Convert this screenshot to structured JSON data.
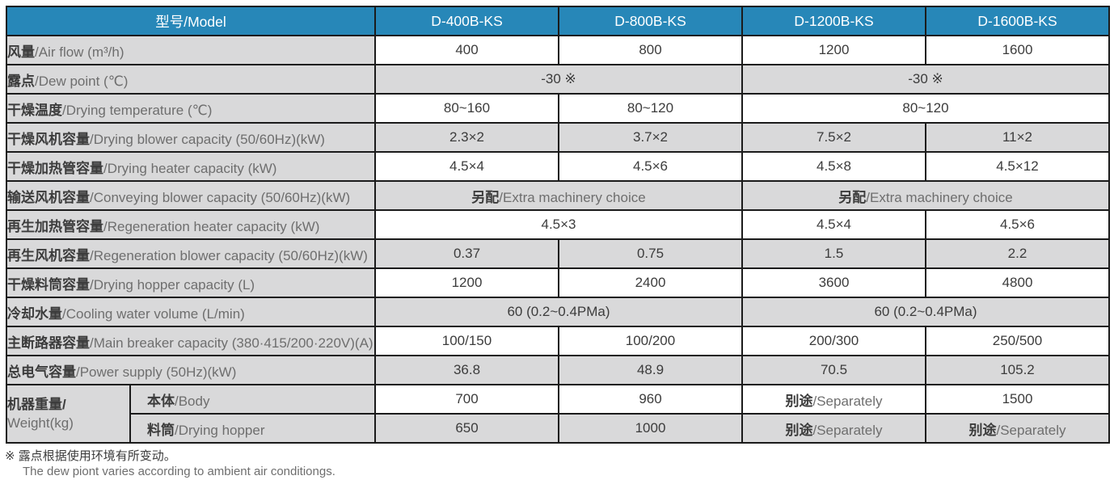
{
  "table": {
    "header": {
      "label": {
        "zh": "型号",
        "en": "/Model"
      },
      "models": [
        "D-400B-KS",
        "D-800B-KS",
        "D-1200B-KS",
        "D-1600B-KS"
      ]
    },
    "rows": [
      {
        "label": {
          "zh": "风量",
          "en": "/Air flow (m³/h)"
        },
        "shade": false,
        "cells": [
          {
            "text": "400"
          },
          {
            "text": "800"
          },
          {
            "text": "1200"
          },
          {
            "text": "1600"
          }
        ]
      },
      {
        "label": {
          "zh": "露点",
          "en": "/Dew point (℃)"
        },
        "shade": true,
        "cells": [
          {
            "text": "-30 ※",
            "span": 2
          },
          {
            "text": "-30 ※",
            "span": 2
          }
        ]
      },
      {
        "label": {
          "zh": "干燥温度",
          "en": "/Drying temperature (℃)"
        },
        "shade": false,
        "cells": [
          {
            "text": "80~160"
          },
          {
            "text": "80~120"
          },
          {
            "text": "80~120",
            "span": 2
          }
        ]
      },
      {
        "label": {
          "zh": "干燥风机容量",
          "en": "/Drying blower capacity (50/60Hz)(kW)"
        },
        "shade": true,
        "cells": [
          {
            "text": "2.3×2"
          },
          {
            "text": "3.7×2"
          },
          {
            "text": "7.5×2"
          },
          {
            "text": "11×2"
          }
        ]
      },
      {
        "label": {
          "zh": "干燥加热管容量",
          "en": "/Drying heater capacity (kW)"
        },
        "shade": false,
        "cells": [
          {
            "text": "4.5×4"
          },
          {
            "text": "4.5×6"
          },
          {
            "text": "4.5×8"
          },
          {
            "text": "4.5×12"
          }
        ]
      },
      {
        "label": {
          "zh": "输送风机容量",
          "en": "/Conveying blower capacity (50/60Hz)(kW)"
        },
        "shade": true,
        "cells": [
          {
            "zh": "另配",
            "en": "/Extra machinery choice",
            "span": 2
          },
          {
            "zh": "另配",
            "en": "/Extra machinery choice",
            "span": 2
          }
        ]
      },
      {
        "label": {
          "zh": "再生加热管容量",
          "en": "/Regeneration heater capacity (kW)"
        },
        "shade": false,
        "cells": [
          {
            "text": "4.5×3",
            "span": 2
          },
          {
            "text": "4.5×4"
          },
          {
            "text": "4.5×6"
          }
        ]
      },
      {
        "label": {
          "zh": "再生风机容量",
          "en": "/Regeneration blower capacity (50/60Hz)(kW)"
        },
        "shade": true,
        "cells": [
          {
            "text": "0.37"
          },
          {
            "text": "0.75"
          },
          {
            "text": "1.5"
          },
          {
            "text": "2.2"
          }
        ]
      },
      {
        "label": {
          "zh": "干燥料筒容量",
          "en": "/Drying hopper capacity (L)"
        },
        "shade": false,
        "cells": [
          {
            "text": "1200"
          },
          {
            "text": "2400"
          },
          {
            "text": "3600"
          },
          {
            "text": "4800"
          }
        ]
      },
      {
        "label": {
          "zh": "冷却水量",
          "en": "/Cooling water volume (L/min)"
        },
        "shade": true,
        "cells": [
          {
            "text": "60 (0.2~0.4PMa)",
            "span": 2
          },
          {
            "text": "60 (0.2~0.4PMa)",
            "span": 2
          }
        ]
      },
      {
        "label": {
          "zh": "主断路器容量",
          "en": "/Main breaker capacity (380·415/200·220V)(A)"
        },
        "shade": false,
        "cells": [
          {
            "text": "100/150"
          },
          {
            "text": "100/200"
          },
          {
            "text": "200/300"
          },
          {
            "text": "250/500"
          }
        ]
      },
      {
        "label": {
          "zh": "总电气容量",
          "en": "/Power supply (50Hz)(kW)"
        },
        "shade": true,
        "cells": [
          {
            "text": "36.8"
          },
          {
            "text": "48.9"
          },
          {
            "text": "70.5"
          },
          {
            "text": "105.2"
          }
        ]
      },
      {
        "group": {
          "zh": "机器重量/",
          "en": "Weight(kg)"
        },
        "sub": {
          "zh": "本体",
          "en": "/Body"
        },
        "shade": false,
        "cells": [
          {
            "text": "700"
          },
          {
            "text": "960"
          },
          {
            "zh": "别途",
            "en": "/Separately"
          },
          {
            "text": "1500"
          }
        ]
      },
      {
        "sub": {
          "zh": "料筒",
          "en": "/Drying hopper"
        },
        "shade": true,
        "cells": [
          {
            "text": "650"
          },
          {
            "text": "1000"
          },
          {
            "zh": "别途",
            "en": "/Separately"
          },
          {
            "zh": "别途",
            "en": "/Separately"
          }
        ]
      }
    ]
  },
  "footnote": {
    "marker": "※",
    "zh": "露点根据使用环境有所变动。",
    "en": "The dew piont varies according to ambient air conditiongs."
  },
  "colors": {
    "header_bg": "#2787b8",
    "shade_bg": "#d9d9da",
    "border": "#1b1b1b",
    "zh_text": "#3c3c3c",
    "en_text": "#6e6e6e"
  }
}
